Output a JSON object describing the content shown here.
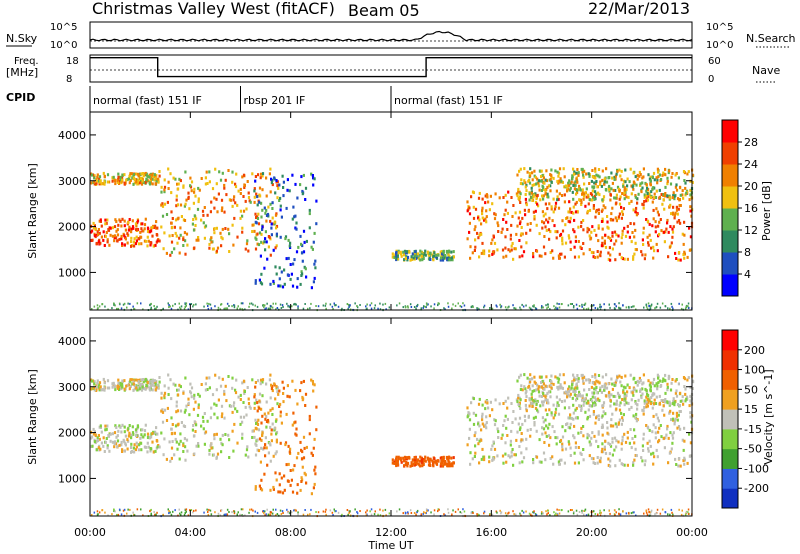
{
  "header": {
    "title": "Christmas Valley West (fitACF)",
    "beam": "Beam 05",
    "date": "22/Mar/2013"
  },
  "noise_panel": {
    "left_label": "N.Sky",
    "left_ticks": [
      "10^5",
      "10^0"
    ],
    "right_ticks": [
      "10^5",
      "10^0"
    ],
    "right_label": "N.Search"
  },
  "freq_panel": {
    "left_label_1": "Freq.",
    "left_label_2": "[MHz]",
    "left_ticks": [
      "18",
      "8"
    ],
    "right_ticks": [
      "60",
      "0"
    ],
    "right_label": "Nave"
  },
  "cpid": {
    "label": "CPID",
    "segments": [
      {
        "label": "normal (fast) 151 IF",
        "start_h": 0,
        "end_h": 6
      },
      {
        "label": "rbsp 201 IF",
        "start_h": 6,
        "end_h": 12
      },
      {
        "label": "normal (fast) 151 IF",
        "start_h": 12,
        "end_h": 24
      }
    ]
  },
  "power_colorbar": {
    "label": "Power [dB]",
    "ticks": [
      "4",
      "8",
      "12",
      "16",
      "20",
      "24",
      "28"
    ],
    "colors": [
      "#0000ff",
      "#1f4fbf",
      "#2f8a5f",
      "#5fb04f",
      "#f0c010",
      "#f08000",
      "#f04000",
      "#ff0000"
    ]
  },
  "velocity_colorbar": {
    "label": "Velocity [m s^-1]",
    "ticks": [
      "200",
      "100",
      "50",
      "15",
      "-15",
      "-50",
      "-100",
      "-200"
    ],
    "colors": [
      "#1030c0",
      "#3060e0",
      "#40a030",
      "#80d040",
      "#c0c0b8",
      "#f0a020",
      "#f06000",
      "#f03000",
      "#ff0000"
    ]
  },
  "chart_data": {
    "type": "heatmap",
    "title": "Christmas Valley West (fitACF)",
    "xlabel": "Time UT",
    "ylabel": "Slant Range [km]",
    "x_ticks": [
      "00:00",
      "04:00",
      "08:00",
      "12:00",
      "16:00",
      "20:00",
      "00:00"
    ],
    "xlim_hours": [
      0,
      24
    ],
    "y_ticks": [
      "1000",
      "2000",
      "3000",
      "4000"
    ],
    "ylim_km": [
      180,
      4500
    ],
    "panels": [
      "Power [dB]",
      "Velocity [m s^-1]"
    ],
    "frequency_steps": [
      {
        "start_h": 0,
        "end_h": 2.7,
        "freq_mhz": 17
      },
      {
        "start_h": 2.7,
        "end_h": 13.4,
        "freq_mhz": 10
      },
      {
        "start_h": 13.4,
        "end_h": 24,
        "freq_mhz": 17
      }
    ],
    "scatter_regions": [
      {
        "name": "upper band",
        "start_h": 0,
        "end_h": 2.7,
        "range_km": [
          2950,
          3200
        ],
        "power_db": 24,
        "velocity": 0
      },
      {
        "name": "main band",
        "start_h": 0,
        "end_h": 2.7,
        "range_km": [
          1600,
          2200
        ],
        "power_db": 30,
        "velocity": 0
      },
      {
        "name": "rising band",
        "start_h": 2.7,
        "end_h": 7.5,
        "range_km": [
          1400,
          3300
        ],
        "power_db": 26,
        "velocity": 0
      },
      {
        "name": "morning echo",
        "start_h": 6.5,
        "end_h": 9,
        "range_km": [
          700,
          3200
        ],
        "power_db": 12,
        "velocity": -50
      },
      {
        "name": "midday patch",
        "start_h": 12,
        "end_h": 14.5,
        "range_km": [
          1300,
          1500
        ],
        "power_db": 18,
        "velocity": -80
      },
      {
        "name": "afternoon band",
        "start_h": 15,
        "end_h": 24,
        "range_km": [
          1300,
          2800
        ],
        "power_db": 28,
        "velocity": 0
      },
      {
        "name": "evening upper",
        "start_h": 17,
        "end_h": 24,
        "range_km": [
          2600,
          3300
        ],
        "power_db": 22,
        "velocity": 0
      }
    ]
  }
}
